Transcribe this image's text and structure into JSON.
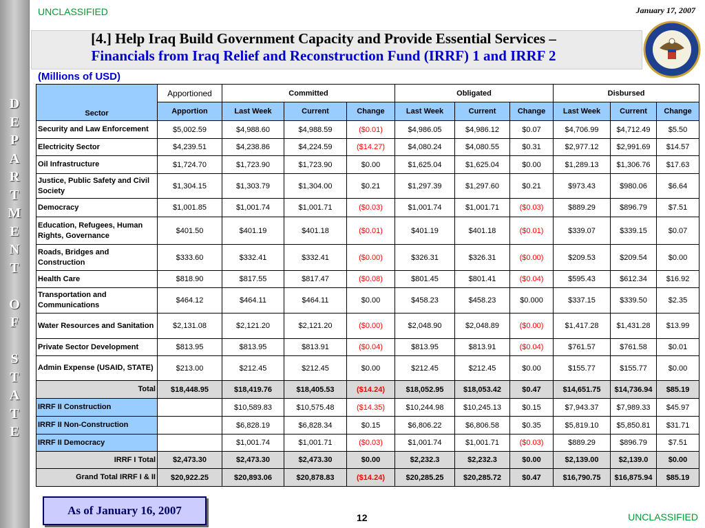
{
  "header": {
    "classification": "UNCLASSIFIED",
    "date": "January 17, 2007",
    "title_line1": "[4.] Help Iraq Build Government Capacity and Provide Essential Services –",
    "title_line2": "Financials from Iraq Relief and Reconstruction Fund (IRRF) 1 and IRRF 2",
    "units": "(Millions of USD)"
  },
  "side_text": "DEPARTMENT OF STATE",
  "table": {
    "header_groups": [
      "Sector",
      "Apportioned",
      "Committed",
      "Obligated",
      "Disbursed"
    ],
    "columns": [
      "Apportion",
      "Last Week",
      "Current",
      "Change",
      "Last Week",
      "Current",
      "Change",
      "Last Week",
      "Current",
      "Change"
    ],
    "rows": [
      {
        "sector": "Security and Law Enforcement",
        "values": [
          "$5,002.59",
          "$4,988.60",
          "$4,988.59",
          "($0.01)",
          "$4,986.05",
          "$4,986.12",
          "$0.07",
          "$4,706.99",
          "$4,712.49",
          "$5.50"
        ]
      },
      {
        "sector": "Electricity Sector",
        "values": [
          "$4,239.51",
          "$4,238.86",
          "$4,224.59",
          "($14.27)",
          "$4,080.24",
          "$4,080.55",
          "$0.31",
          "$2,977.12",
          "$2,991.69",
          "$14.57"
        ]
      },
      {
        "sector": "Oil Infrastructure",
        "values": [
          "$1,724.70",
          "$1,723.90",
          "$1,723.90",
          "$0.00",
          "$1,625.04",
          "$1,625.04",
          "$0.00",
          "$1,289.13",
          "$1,306.76",
          "$17.63"
        ]
      },
      {
        "sector": "Justice, Public Safety and Civil Society",
        "values": [
          "$1,304.15",
          "$1,303.79",
          "$1,304.00",
          "$0.21",
          "$1,297.39",
          "$1,297.60",
          "$0.21",
          "$973.43",
          "$980.06",
          "$6.64"
        ]
      },
      {
        "sector": "Democracy",
        "values": [
          "$1,001.85",
          "$1,001.74",
          "$1,001.71",
          "($0.03)",
          "$1,001.74",
          "$1,001.71",
          "($0.03)",
          "$889.29",
          "$896.79",
          "$7.51"
        ]
      },
      {
        "sector": "Education, Refugees, Human Rights, Governance",
        "values": [
          "$401.50",
          "$401.19",
          "$401.18",
          "($0.01)",
          "$401.19",
          "$401.18",
          "($0.01)",
          "$339.07",
          "$339.15",
          "$0.07"
        ]
      },
      {
        "sector": "Roads, Bridges and Construction",
        "values": [
          "$333.60",
          "$332.41",
          "$332.41",
          "($0.00)",
          "$326.31",
          "$326.31",
          "($0.00)",
          "$209.53",
          "$209.54",
          "$0.00"
        ]
      },
      {
        "sector": "Health Care",
        "values": [
          "$818.90",
          "$817.55",
          "$817.47",
          "($0.08)",
          "$801.45",
          "$801.41",
          "($0.04)",
          "$595.43",
          "$612.34",
          "$16.92"
        ]
      },
      {
        "sector": "Transportation and Communications",
        "values": [
          "$464.12",
          "$464.11",
          "$464.11",
          "$0.00",
          "$458.23",
          "$458.23",
          "$0.000",
          "$337.15",
          "$339.50",
          "$2.35"
        ]
      },
      {
        "sector": "Water Resources and Sanitation",
        "values": [
          "$2,131.08",
          "$2,121.20",
          "$2,121.20",
          "($0.00)",
          "$2,048.90",
          "$2,048.89",
          "($0.00)",
          "$1,417.28",
          "$1,431.28",
          "$13.99"
        ]
      },
      {
        "sector": "Private Sector Development",
        "values": [
          "$813.95",
          "$813.95",
          "$813.91",
          "($0.04)",
          "$813.95",
          "$813.91",
          "($0.04)",
          "$761.57",
          "$761.58",
          "$0.01"
        ]
      },
      {
        "sector": "Admin Expense (USAID, STATE)",
        "values": [
          "$213.00",
          "$212.45",
          "$212.45",
          "$0.00",
          "$212.45",
          "$212.45",
          "$0.00",
          "$155.77",
          "$155.77",
          "$0.00"
        ]
      },
      {
        "sector": "Total",
        "values": [
          "$18,448.95",
          "$18,419.76",
          "$18,405.53",
          "($14.24)",
          "$18,052.95",
          "$18,053.42",
          "$0.47",
          "$14,651.75",
          "$14,736.94",
          "$85.19"
        ]
      },
      {
        "sector": "IRRF II Construction",
        "values": [
          null,
          "$10,589.83",
          "$10,575.48",
          "($14.35)",
          "$10,244.98",
          "$10,245.13",
          "$0.15",
          "$7,943.37",
          "$7,989.33",
          "$45.97"
        ]
      },
      {
        "sector": "IRRF II Non-Construction",
        "values": [
          null,
          "$6,828.19",
          "$6,828.34",
          "$0.15",
          "$6,806.22",
          "$6,806.58",
          "$0.35",
          "$5,819.10",
          "$5,850.81",
          "$31.71"
        ]
      },
      {
        "sector": "IRRF II Democracy",
        "values": [
          null,
          "$1,001.74",
          "$1,001.71",
          "($0.03)",
          "$1,001.74",
          "$1,001.71",
          "($0.03)",
          "$889.29",
          "$896.79",
          "$7.51"
        ]
      },
      {
        "sector": "IRRF I Total",
        "values": [
          "$2,473.30",
          "$2,473.30",
          "$2,473.30",
          "$0.00",
          "$2,232.3",
          "$2,232.3",
          "$0.00",
          "$2,139.00",
          "$2,139.0",
          "$0.00"
        ]
      },
      {
        "sector": "Grand Total IRRF I & II",
        "values": [
          "$20,922.25",
          "$20,893.06",
          "$20,878.83",
          "($14.24)",
          "$20,285.25",
          "$20,285.72",
          "$0.47",
          "$16,790.75",
          "$16,875.94",
          "$85.19"
        ]
      }
    ]
  },
  "footer": {
    "as_of": "As of January 16, 2007",
    "page": "12",
    "classification": "UNCLASSIFIED"
  }
}
